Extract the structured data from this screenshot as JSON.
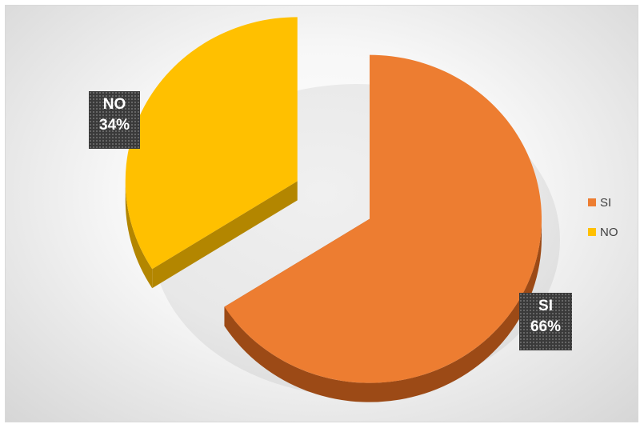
{
  "chart_data": {
    "type": "pie",
    "style": "3d-exploded",
    "slices": [
      {
        "label": "SI",
        "value": 66,
        "value_label": "66%",
        "color": "#ED7D31",
        "side_color": "#9C4A16"
      },
      {
        "label": "NO",
        "value": 34,
        "value_label": "34%",
        "color": "#FFC000",
        "side_color": "#B38600"
      }
    ],
    "legend": {
      "position": "right",
      "items": [
        {
          "label": "SI",
          "color": "#ED7D31"
        },
        {
          "label": "NO",
          "color": "#FFC000"
        }
      ]
    }
  }
}
